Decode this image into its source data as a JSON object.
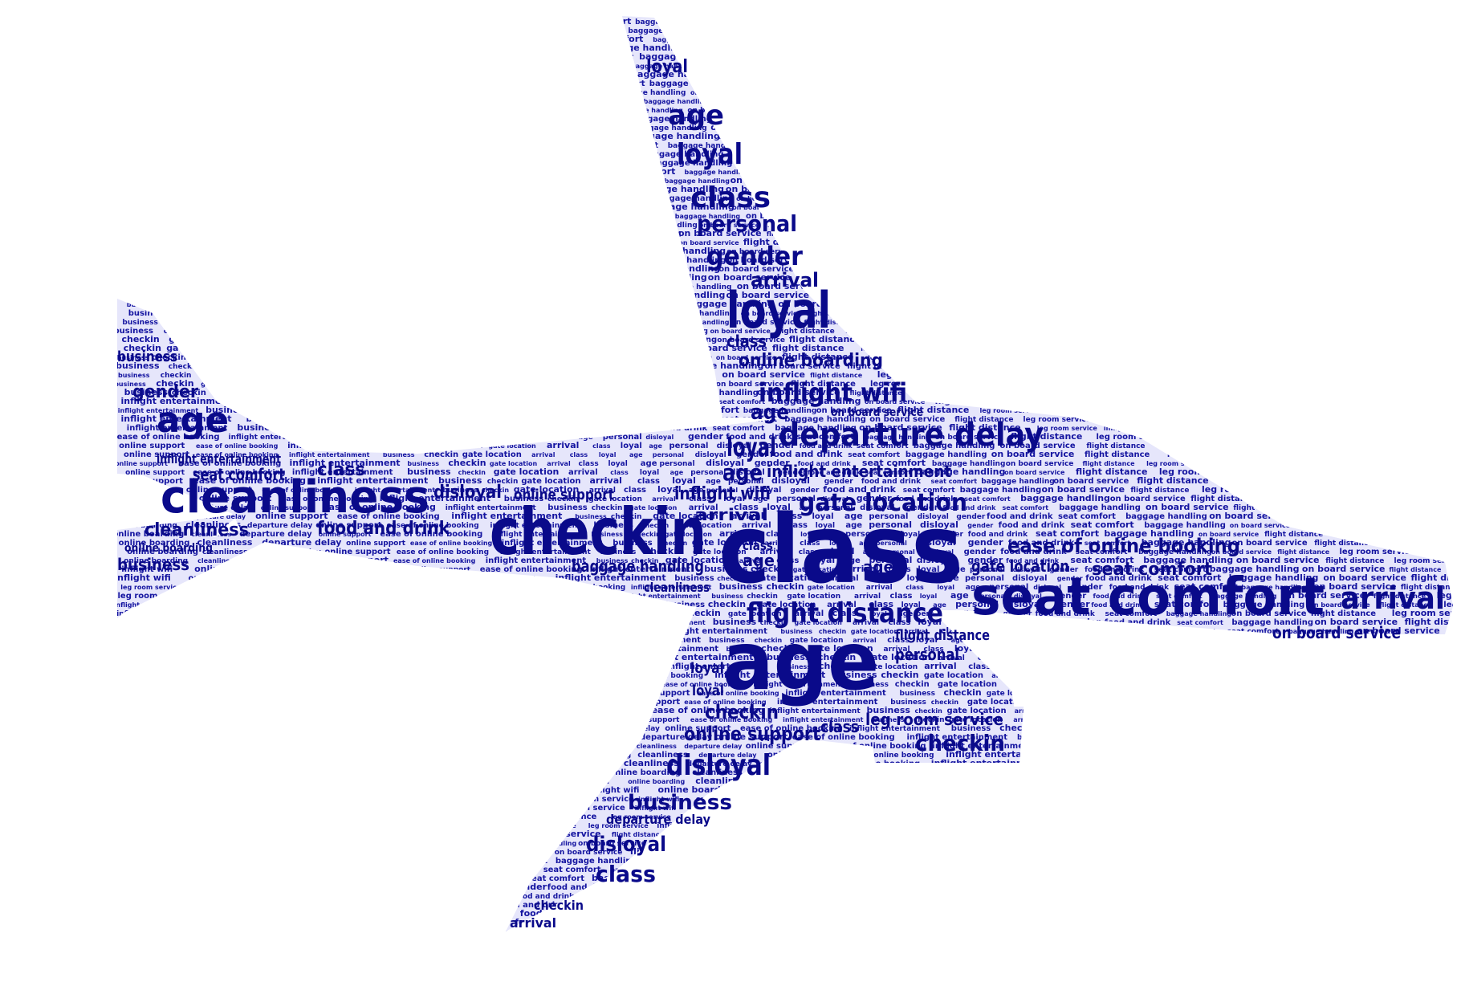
{
  "colors": {
    "background": "#ffffff",
    "silhouette": "#e6e6fb",
    "text": "#0a0a8a"
  },
  "words": [
    "class",
    "age",
    "checkin",
    "seat comfort",
    "cleanliness",
    "loyal",
    "departure delay",
    "flight distance",
    "inflight wifi",
    "gate location",
    "ease of online booking",
    "arrival",
    "online boarding",
    "disloyal",
    "business",
    "online support",
    "personal",
    "gender",
    "food and drink",
    "baggage handling",
    "leg room service",
    "on board service",
    "inflight entertainment"
  ],
  "filler_words": [
    "business",
    "checkin",
    "gate location",
    "arrival",
    "class",
    "loyal",
    "age",
    "personal",
    "disloyal",
    "gender",
    "food and drink",
    "seat comfort",
    "baggage handling",
    "on board service",
    "flight distance",
    "leg room service",
    "inflight wifi",
    "online boarding",
    "cleanliness",
    "departure delay",
    "online support",
    "ease of online booking",
    "inflight entertainment"
  ]
}
